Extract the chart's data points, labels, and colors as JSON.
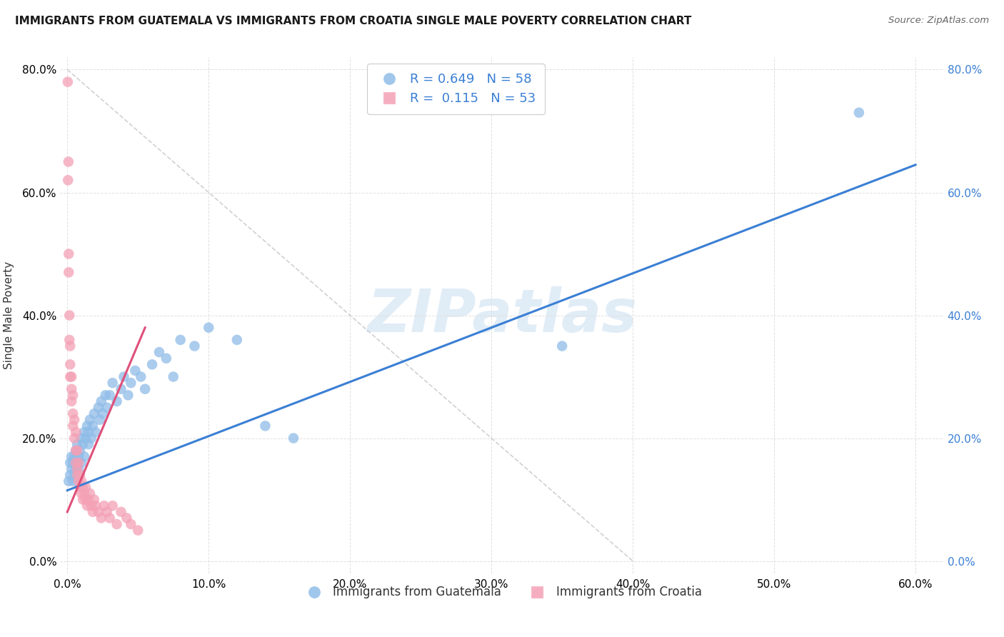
{
  "title": "IMMIGRANTS FROM GUATEMALA VS IMMIGRANTS FROM CROATIA SINGLE MALE POVERTY CORRELATION CHART",
  "source": "Source: ZipAtlas.com",
  "ylabel": "Single Male Poverty",
  "legend_labels": [
    "Immigrants from Guatemala",
    "Immigrants from Croatia"
  ],
  "r_guatemala": "0.649",
  "n_guatemala": "58",
  "r_croatia": "0.115",
  "n_croatia": "53",
  "color_guatemala": "#8fbce8",
  "color_croatia": "#f4a0b5",
  "trendline_guatemala": "#3a7fd4",
  "trendline_croatia": "#e0507a",
  "refline_color": "#cccccc",
  "background": "#ffffff",
  "xlim": [
    -0.005,
    0.62
  ],
  "ylim": [
    -0.02,
    0.82
  ],
  "xticks": [
    0.0,
    0.1,
    0.2,
    0.3,
    0.4,
    0.5,
    0.6
  ],
  "yticks": [
    0.0,
    0.2,
    0.4,
    0.6,
    0.8
  ],
  "right_yticks": [
    0.0,
    0.2,
    0.4,
    0.6,
    0.8
  ],
  "guatemala_x": [
    0.001,
    0.002,
    0.002,
    0.003,
    0.003,
    0.004,
    0.004,
    0.005,
    0.005,
    0.006,
    0.006,
    0.007,
    0.007,
    0.008,
    0.008,
    0.009,
    0.01,
    0.01,
    0.011,
    0.012,
    0.012,
    0.013,
    0.014,
    0.015,
    0.015,
    0.016,
    0.017,
    0.018,
    0.019,
    0.02,
    0.022,
    0.023,
    0.024,
    0.025,
    0.027,
    0.028,
    0.03,
    0.032,
    0.035,
    0.038,
    0.04,
    0.043,
    0.045,
    0.048,
    0.052,
    0.055,
    0.06,
    0.065,
    0.07,
    0.075,
    0.08,
    0.09,
    0.1,
    0.12,
    0.14,
    0.16,
    0.35,
    0.56
  ],
  "guatemala_y": [
    0.13,
    0.16,
    0.14,
    0.17,
    0.15,
    0.13,
    0.16,
    0.14,
    0.17,
    0.15,
    0.18,
    0.16,
    0.19,
    0.15,
    0.17,
    0.18,
    0.16,
    0.2,
    0.19,
    0.17,
    0.21,
    0.2,
    0.22,
    0.19,
    0.21,
    0.23,
    0.2,
    0.22,
    0.24,
    0.21,
    0.25,
    0.23,
    0.26,
    0.24,
    0.27,
    0.25,
    0.27,
    0.29,
    0.26,
    0.28,
    0.3,
    0.27,
    0.29,
    0.31,
    0.3,
    0.28,
    0.32,
    0.34,
    0.33,
    0.3,
    0.36,
    0.35,
    0.38,
    0.36,
    0.22,
    0.2,
    0.35,
    0.73
  ],
  "croatia_x": [
    0.0003,
    0.0005,
    0.0008,
    0.001,
    0.001,
    0.0015,
    0.0015,
    0.002,
    0.002,
    0.002,
    0.003,
    0.003,
    0.003,
    0.004,
    0.004,
    0.004,
    0.005,
    0.005,
    0.006,
    0.006,
    0.006,
    0.007,
    0.007,
    0.007,
    0.008,
    0.008,
    0.009,
    0.009,
    0.01,
    0.01,
    0.011,
    0.011,
    0.012,
    0.013,
    0.013,
    0.014,
    0.015,
    0.016,
    0.017,
    0.018,
    0.019,
    0.02,
    0.022,
    0.024,
    0.026,
    0.028,
    0.03,
    0.032,
    0.035,
    0.038,
    0.042,
    0.045,
    0.05
  ],
  "croatia_y": [
    0.78,
    0.62,
    0.65,
    0.47,
    0.5,
    0.36,
    0.4,
    0.32,
    0.35,
    0.3,
    0.28,
    0.26,
    0.3,
    0.24,
    0.27,
    0.22,
    0.2,
    0.23,
    0.18,
    0.21,
    0.16,
    0.15,
    0.18,
    0.14,
    0.13,
    0.16,
    0.12,
    0.14,
    0.11,
    0.13,
    0.1,
    0.12,
    0.11,
    0.1,
    0.12,
    0.09,
    0.1,
    0.11,
    0.09,
    0.08,
    0.1,
    0.09,
    0.08,
    0.07,
    0.09,
    0.08,
    0.07,
    0.09,
    0.06,
    0.08,
    0.07,
    0.06,
    0.05
  ],
  "guat_trend_x": [
    0.0,
    0.6
  ],
  "guat_trend_y": [
    0.115,
    0.645
  ],
  "croatia_trend_x": [
    0.0,
    0.055
  ],
  "croatia_trend_y": [
    0.08,
    0.38
  ],
  "refline_x": [
    0.0,
    0.4
  ],
  "refline_y": [
    0.8,
    0.0
  ],
  "watermark": "ZIPatlas",
  "watermark_color": "#c8ddf0",
  "title_fontsize": 11,
  "axis_label_fontsize": 11,
  "tick_fontsize": 11,
  "legend_fontsize": 13,
  "right_tick_color": "#3a7fd4"
}
